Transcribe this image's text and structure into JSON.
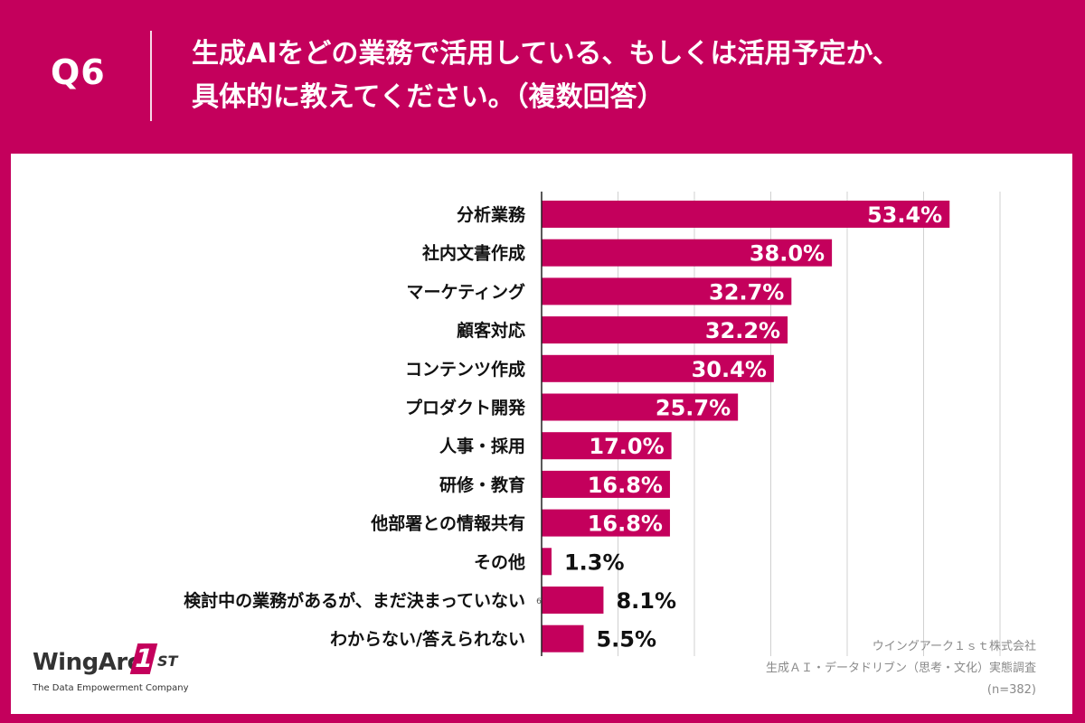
{
  "question": {
    "number": "Q6",
    "line1": "生成AIをどの業務で活用している、もしくは活用予定か、",
    "line2": "具体的に教えてください。（複数回答）"
  },
  "chart_data": {
    "type": "bar",
    "orientation": "horizontal",
    "categories": [
      "分析業務",
      "社内文書作成",
      "マーケティング",
      "顧客対応",
      "コンテンツ作成",
      "プロダクト開発",
      "人事・採用",
      "研修・教育",
      "他部署との情報共有",
      "その他",
      "検討中の業務があるが、まだ決まっていない",
      "わからない/答えられない"
    ],
    "values": [
      53.4,
      38.0,
      32.7,
      32.2,
      30.4,
      25.7,
      17.0,
      16.8,
      16.8,
      1.3,
      8.1,
      5.5
    ],
    "value_labels": [
      "53.4%",
      "38.0%",
      "32.7%",
      "32.2%",
      "30.4%",
      "25.7%",
      "17.0%",
      "16.8%",
      "16.8%",
      "1.3%",
      "8.1%",
      "5.5%"
    ],
    "xlim": [
      0,
      60
    ],
    "grid": true,
    "unit": "%",
    "stray_mark": "6",
    "bar_color": "#c4005c"
  },
  "source": {
    "company": "ウイングアーク１ｓｔ株式会社",
    "survey": "生成ＡＩ・データドリブン（思考・文化）実態調査",
    "sample": "(n=382)"
  },
  "logo": {
    "word": "WingArc",
    "mark": "1",
    "suffix": "ST",
    "tagline": "The Data Empowerment Company"
  },
  "colors": {
    "brand": "#c4005c",
    "background": "#ffffff",
    "grid": "#d0d0d0"
  }
}
